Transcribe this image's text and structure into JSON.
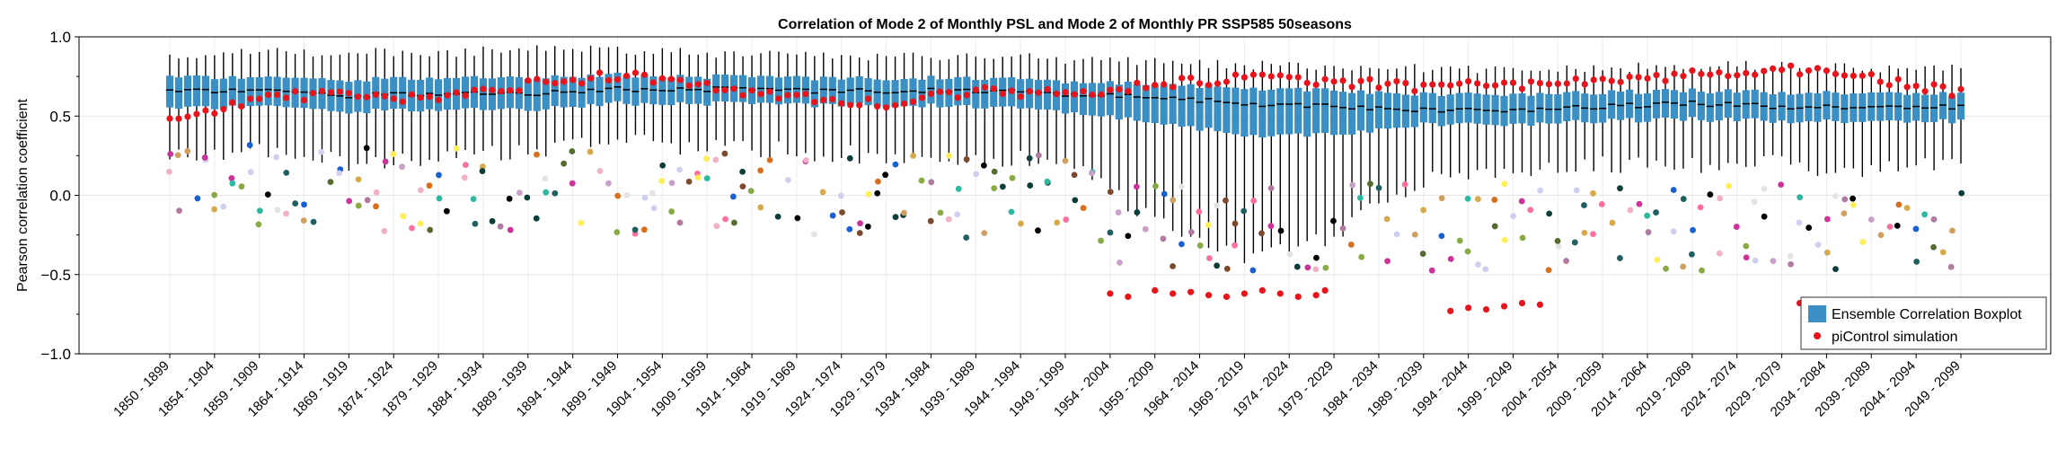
{
  "chart_data": {
    "type": "boxplot",
    "title": "Correlation of Mode 2 of Monthly PSL and Mode 2 of Monthly PR SSP585 50seasons",
    "ylabel": "Pearson correlation coefficient",
    "xlabel": "",
    "ylim": [
      -1.0,
      1.0
    ],
    "yticks": [
      1.0,
      0.5,
      0.0,
      -0.5,
      -1.0
    ],
    "ytick_labels": [
      "1.0",
      "0.5",
      "0.0",
      "−0.5",
      "−1.0"
    ],
    "grid": true,
    "first_start_year": 1850,
    "window_length": 50,
    "n_windows": 201,
    "xtick_labels": [
      "1850 - 1899",
      "1854 - 1904",
      "1859 - 1909",
      "1864 - 1914",
      "1869 - 1919",
      "1874 - 1924",
      "1879 - 1929",
      "1884 - 1934",
      "1889 - 1939",
      "1894 - 1944",
      "1899 - 1949",
      "1904 - 1954",
      "1909 - 1959",
      "1914 - 1964",
      "1919 - 1969",
      "1924 - 1974",
      "1929 - 1979",
      "1934 - 1984",
      "1939 - 1989",
      "1944 - 1994",
      "1949 - 1999",
      "1954 - 2004",
      "1959 - 2009",
      "1964 - 2014",
      "1969 - 2019",
      "1974 - 2024",
      "1979 - 2029",
      "1984 - 2034",
      "1989 - 2039",
      "1994 - 2044",
      "1999 - 2049",
      "2004 - 2054",
      "2009 - 2059",
      "2014 - 2064",
      "2019 - 2069",
      "2024 - 2074",
      "2029 - 2079",
      "2034 - 2084",
      "2039 - 2089",
      "2044 - 2094",
      "2049 - 2099"
    ],
    "legend_position": "bottom-right",
    "legend": [
      {
        "label": "Ensemble Correlation Boxplot",
        "color": "#3a8fc4",
        "kind": "box"
      },
      {
        "label": "piControl simulation",
        "color": "#e8141c",
        "kind": "dot"
      }
    ],
    "box_color": "#3a8fc4",
    "median_color": "#000000",
    "whisker_color": "#000000",
    "picontrol_color": "#e8141c",
    "ensemble_point_colors": [
      "#000000",
      "#0b3d3a",
      "#1f5f5f",
      "#b07aa1",
      "#c9a0c9",
      "#cfcfef",
      "#ff6f9e",
      "#d6a94a",
      "#2db8a0",
      "#1a5fd0",
      "#e3e3e3",
      "#7b4a2d",
      "#f2b0c8",
      "#cc3399",
      "#d96f1c",
      "#ffee55",
      "#d0a060",
      "#88aa44",
      "#556b2f"
    ],
    "medians_by_decade": {
      "x_start_years": [
        1850,
        1860,
        1870,
        1880,
        1890,
        1900,
        1910,
        1920,
        1930,
        1940,
        1950,
        1960,
        1970,
        1980,
        1990,
        2000,
        2010,
        2020,
        2030,
        2040,
        2050
      ],
      "median": [
        0.66,
        0.66,
        0.63,
        0.64,
        0.64,
        0.67,
        0.67,
        0.66,
        0.66,
        0.66,
        0.64,
        0.62,
        0.58,
        0.56,
        0.54,
        0.54,
        0.56,
        0.58,
        0.56,
        0.55,
        0.56
      ],
      "q1": [
        0.55,
        0.56,
        0.53,
        0.54,
        0.54,
        0.58,
        0.58,
        0.57,
        0.57,
        0.56,
        0.53,
        0.46,
        0.38,
        0.38,
        0.45,
        0.45,
        0.47,
        0.48,
        0.47,
        0.46,
        0.47
      ],
      "q3": [
        0.75,
        0.74,
        0.73,
        0.74,
        0.74,
        0.76,
        0.75,
        0.74,
        0.74,
        0.74,
        0.72,
        0.7,
        0.68,
        0.66,
        0.64,
        0.64,
        0.65,
        0.66,
        0.65,
        0.64,
        0.64
      ],
      "whisker_low": [
        0.25,
        0.28,
        0.2,
        0.25,
        0.28,
        0.35,
        0.3,
        0.28,
        0.25,
        0.25,
        0.2,
        -0.15,
        -0.4,
        -0.25,
        0.1,
        0.15,
        0.2,
        0.2,
        0.2,
        0.15,
        0.22
      ],
      "whisker_high": [
        0.88,
        0.9,
        0.9,
        0.9,
        0.92,
        0.92,
        0.9,
        0.88,
        0.88,
        0.88,
        0.86,
        0.84,
        0.82,
        0.82,
        0.8,
        0.8,
        0.8,
        0.82,
        0.82,
        0.8,
        0.8
      ]
    },
    "picontrol_by_decade": {
      "x_start_years": [
        1850,
        1860,
        1870,
        1880,
        1890,
        1900,
        1910,
        1920,
        1930,
        1940,
        1950,
        1960,
        1970,
        1980,
        1990,
        2000,
        2010,
        2020,
        2030,
        2040,
        2050
      ],
      "value": [
        0.47,
        0.62,
        0.64,
        0.6,
        0.7,
        0.76,
        0.68,
        0.62,
        0.58,
        0.66,
        0.64,
        0.7,
        0.74,
        0.72,
        0.68,
        0.7,
        0.72,
        0.76,
        0.8,
        0.74,
        0.64
      ]
    }
  }
}
